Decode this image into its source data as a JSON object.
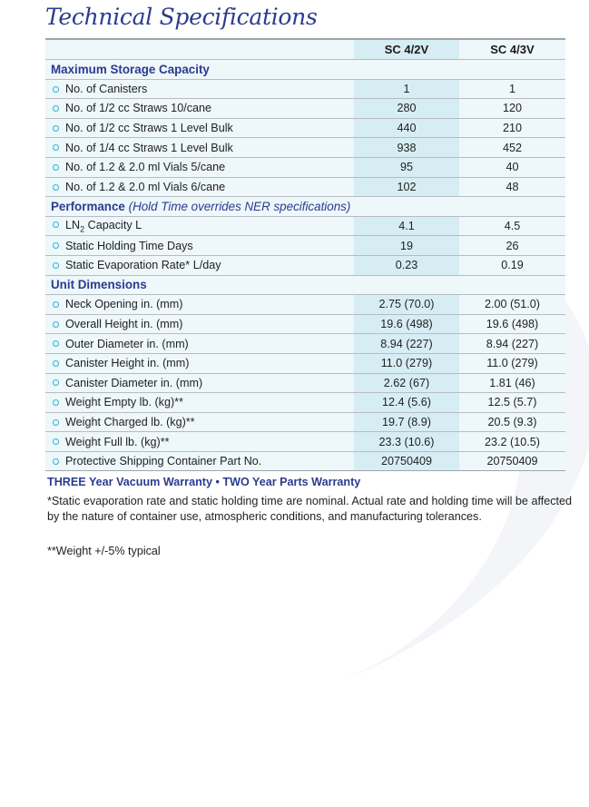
{
  "title": "Technical Specifications",
  "columns": [
    "SC 4/2V",
    "SC 4/3V"
  ],
  "sections": [
    {
      "title": "Maximum Storage Capacity",
      "note": "",
      "rows": [
        {
          "label": "No. of Canisters",
          "values": [
            "1",
            "1"
          ]
        },
        {
          "label": "No. of 1/2 cc Straws 10/cane",
          "values": [
            "280",
            "120"
          ]
        },
        {
          "label": "No. of 1/2 cc Straws 1 Level Bulk",
          "values": [
            "440",
            "210"
          ]
        },
        {
          "label": "No. of 1/4 cc Straws 1 Level Bulk",
          "values": [
            "938",
            "452"
          ]
        },
        {
          "label": "No. of 1.2 & 2.0 ml Vials 5/cane",
          "values": [
            "95",
            "40"
          ]
        },
        {
          "label": "No. of 1.2 & 2.0 ml Vials 6/cane",
          "values": [
            "102",
            "48"
          ]
        }
      ]
    },
    {
      "title": "Performance",
      "note": "(Hold Time overrides NER specifications)",
      "rows": [
        {
          "label": "LN",
          "sub": "2",
          "label_post": " Capacity L",
          "values": [
            "4.1",
            "4.5"
          ]
        },
        {
          "label": "Static Holding Time Days",
          "values": [
            "19",
            "26"
          ]
        },
        {
          "label": "Static Evaporation Rate* L/day",
          "values": [
            "0.23",
            "0.19"
          ]
        }
      ]
    },
    {
      "title": "Unit Dimensions",
      "note": "",
      "rows": [
        {
          "label": "Neck Opening in. (mm)",
          "values": [
            "2.75 (70.0)",
            "2.00 (51.0)"
          ]
        },
        {
          "label": "Overall Height in. (mm)",
          "values": [
            "19.6 (498)",
            "19.6 (498)"
          ]
        },
        {
          "label": "Outer Diameter in. (mm)",
          "values": [
            "8.94 (227)",
            "8.94 (227)"
          ]
        },
        {
          "label": "Canister Height in. (mm)",
          "values": [
            "11.0 (279)",
            "11.0 (279)"
          ]
        },
        {
          "label": "Canister Diameter in. (mm)",
          "values": [
            "2.62 (67)",
            "1.81 (46)"
          ]
        },
        {
          "label": "Weight Empty lb. (kg)**",
          "values": [
            "12.4 (5.6)",
            "12.5 (5.7)"
          ]
        },
        {
          "label": "Weight Charged lb. (kg)**",
          "values": [
            "19.7 (8.9)",
            "20.5 (9.3)"
          ]
        },
        {
          "label": "Weight Full lb. (kg)**",
          "values": [
            "23.3 (10.6)",
            "23.2 (10.5)"
          ]
        },
        {
          "label": "Protective Shipping Container Part No.",
          "values": [
            "20750409",
            "20750409"
          ]
        }
      ]
    }
  ],
  "warranty": "THREE Year Vacuum Warranty • TWO Year Parts Warranty",
  "footnote1": "*Static evaporation rate and static holding time are nominal. Actual rate and holding time will be affected by the nature of container use, atmospheric conditions, and manufacturing tolerances.",
  "footnote2": "**Weight +/-5% typical",
  "colors": {
    "navy": "#2b3b8f",
    "bullet": "#2fb2d2",
    "highlight": "#d7edf4",
    "background": "#eef7fa"
  }
}
